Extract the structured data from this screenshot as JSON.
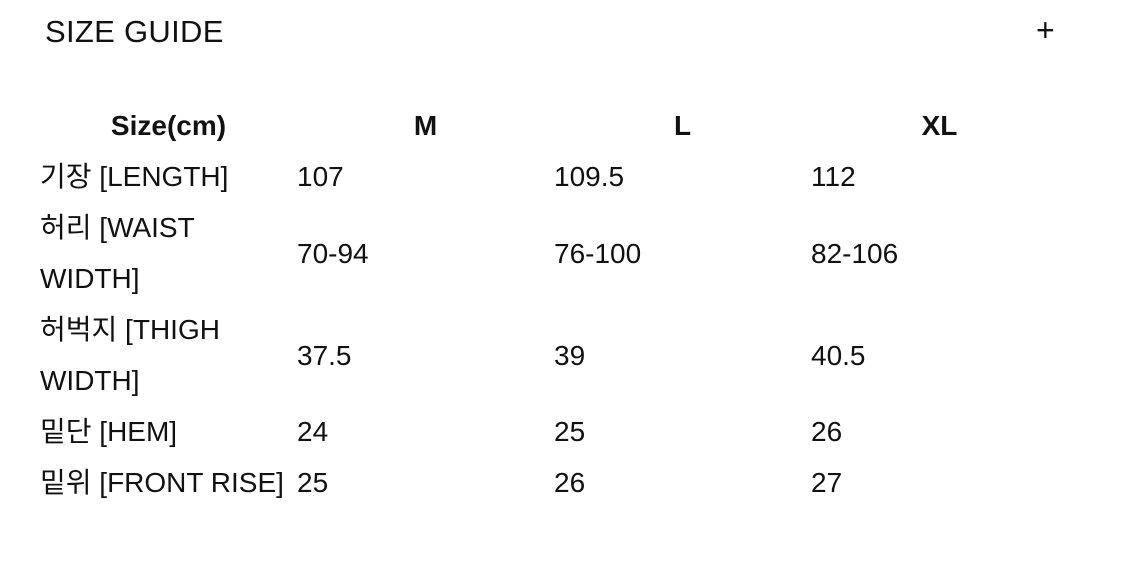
{
  "header": {
    "title": "SIZE GUIDE",
    "toggle_icon": "plus-icon",
    "toggle_label": "+"
  },
  "table": {
    "columns": [
      "Size(cm)",
      "M",
      "L",
      "XL"
    ],
    "rows": [
      {
        "label": "기장 [LENGTH]",
        "values": [
          "107",
          "109.5",
          "112"
        ]
      },
      {
        "label": "허리 [WAIST WIDTH]",
        "values": [
          "70-94",
          "76-100",
          "82-106"
        ]
      },
      {
        "label": "허벅지 [THIGH WIDTH]",
        "values": [
          "37.5",
          "39",
          "40.5"
        ]
      },
      {
        "label": "밑단 [HEM]",
        "values": [
          "24",
          "25",
          "26"
        ]
      },
      {
        "label": "밑위 [FRONT RISE]",
        "values": [
          "25",
          "26",
          "27"
        ]
      }
    ]
  }
}
